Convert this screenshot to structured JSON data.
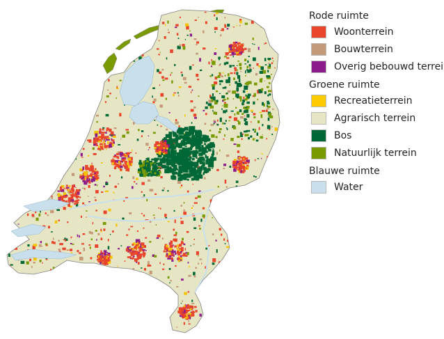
{
  "map": {
    "colors": {
      "land": "#e6e6c4",
      "water": "#c9dfec",
      "border": "#7f7f7f",
      "woonterrein": "#e8452c",
      "bouwterrein": "#c49a78",
      "overig": "#8b1a8b",
      "recreatie": "#f4c300",
      "bos": "#006837",
      "natuur": "#7a9a01"
    }
  },
  "legend": {
    "groups": [
      {
        "heading": "Rode ruimte",
        "items": [
          {
            "label": "Woonterrein",
            "color": "#e8452c"
          },
          {
            "label": "Bouwterrein",
            "color": "#c49a78"
          },
          {
            "label": "Overig bebouwd terrein",
            "color": "#8b1a8b"
          }
        ]
      },
      {
        "heading": "Groene ruimte",
        "items": [
          {
            "label": "Recreatieterrein",
            "color": "#ffcc00"
          },
          {
            "label": "Agrarisch terrein",
            "color": "#e6e6c4"
          },
          {
            "label": "Bos",
            "color": "#006837"
          },
          {
            "label": "Natuurlijk terrein",
            "color": "#7a9a01"
          }
        ]
      },
      {
        "heading": "Blauwe ruimte",
        "items": [
          {
            "label": "Water",
            "color": "#c9dfec"
          }
        ]
      }
    ]
  }
}
